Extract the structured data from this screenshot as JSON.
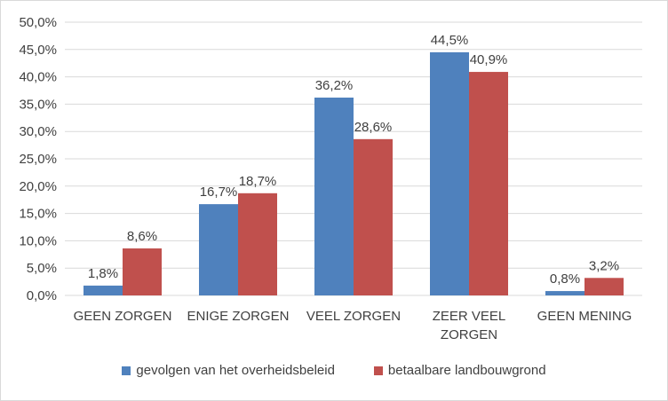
{
  "colors": {
    "series_1": "#4f81bd",
    "series_2": "#c0504d",
    "gridline": "#d9d9d9",
    "text": "#404040"
  },
  "chart_data": {
    "type": "bar",
    "title": "",
    "xlabel": "",
    "ylabel": "",
    "ylim": [
      0,
      50
    ],
    "y_tick_step": 5,
    "y_tick_format": "percent-1-decimal-comma",
    "y_ticks": [
      "0,0%",
      "5,0%",
      "10,0%",
      "15,0%",
      "20,0%",
      "25,0%",
      "30,0%",
      "35,0%",
      "40,0%",
      "45,0%",
      "50,0%"
    ],
    "grid": true,
    "legend_position": "bottom",
    "categories": [
      [
        "GEEN ZORGEN"
      ],
      [
        "ENIGE ZORGEN"
      ],
      [
        "VEEL ZORGEN"
      ],
      [
        "ZEER VEEL",
        "ZORGEN"
      ],
      [
        "GEEN MENING"
      ]
    ],
    "series": [
      {
        "name": "gevolgen van het overheidsbeleid",
        "values": [
          1.8,
          16.7,
          36.2,
          44.5,
          0.8
        ],
        "labels": [
          "1,8%",
          "16,7%",
          "36,2%",
          "44,5%",
          "0,8%"
        ]
      },
      {
        "name": "betaalbare landbouwgrond",
        "values": [
          8.6,
          18.7,
          28.6,
          40.9,
          3.2
        ],
        "labels": [
          "8,6%",
          "18,7%",
          "28,6%",
          "40,9%",
          "3,2%"
        ]
      }
    ]
  }
}
